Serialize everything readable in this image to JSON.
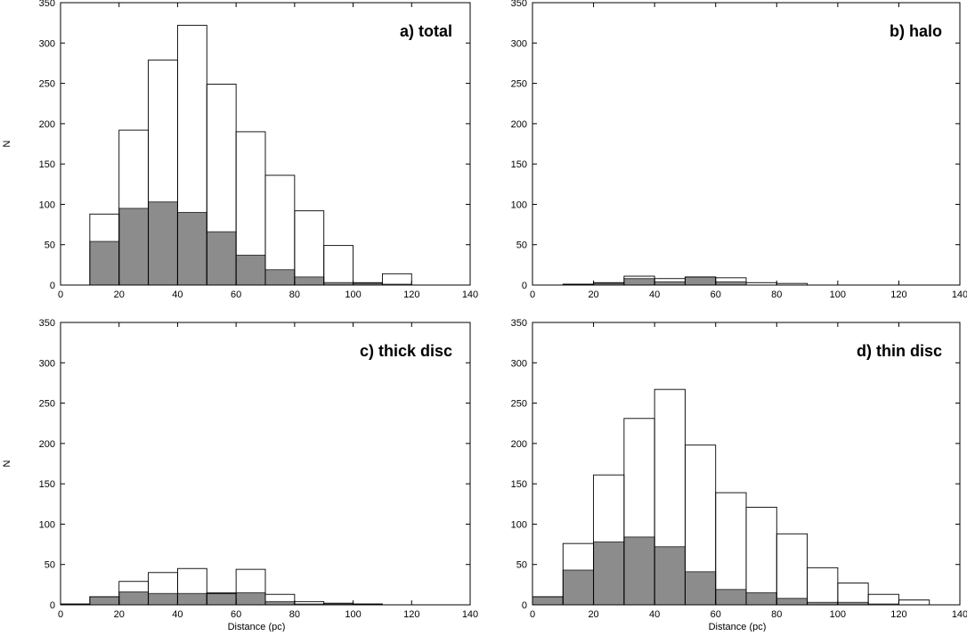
{
  "chart_data": [
    {
      "type": "bar",
      "panel": "a",
      "title": "a) total",
      "xlabel": "",
      "ylabel": "N",
      "xlim": [
        0,
        140
      ],
      "ylim": [
        0,
        350
      ],
      "xticks": [
        0,
        20,
        40,
        60,
        80,
        100,
        120,
        140
      ],
      "yticks": [
        0,
        50,
        100,
        150,
        200,
        250,
        300,
        350
      ],
      "bin_edges": [
        10,
        20,
        30,
        40,
        50,
        60,
        70,
        80,
        90,
        100,
        110,
        120
      ],
      "series": [
        {
          "style": "open",
          "values": [
            88,
            192,
            279,
            322,
            249,
            190,
            136,
            92,
            49,
            3,
            14
          ]
        },
        {
          "style": "filled",
          "values": [
            54,
            95,
            103,
            90,
            66,
            37,
            19,
            10,
            3,
            2,
            1
          ]
        }
      ]
    },
    {
      "type": "bar",
      "panel": "b",
      "title": "b) halo",
      "xlabel": "",
      "ylabel": "",
      "xlim": [
        0,
        140
      ],
      "ylim": [
        0,
        350
      ],
      "xticks": [
        0,
        20,
        40,
        60,
        80,
        100,
        120,
        140
      ],
      "yticks": [
        0,
        50,
        100,
        150,
        200,
        250,
        300,
        350
      ],
      "bin_edges": [
        10,
        20,
        30,
        40,
        50,
        60,
        70,
        80,
        90
      ],
      "series": [
        {
          "style": "open",
          "values": [
            1,
            3,
            11,
            8,
            10,
            9,
            3,
            2
          ]
        },
        {
          "style": "filled",
          "values": [
            1,
            2,
            8,
            4,
            10,
            4,
            0,
            0
          ]
        }
      ]
    },
    {
      "type": "bar",
      "panel": "c",
      "title": "c) thick disc",
      "xlabel": "Distance (pc)",
      "ylabel": "N",
      "xlim": [
        0,
        140
      ],
      "ylim": [
        0,
        350
      ],
      "xticks": [
        0,
        20,
        40,
        60,
        80,
        100,
        120,
        140
      ],
      "yticks": [
        0,
        50,
        100,
        150,
        200,
        250,
        300,
        350
      ],
      "bin_edges": [
        0,
        10,
        20,
        30,
        40,
        50,
        60,
        70,
        80,
        90,
        100,
        110
      ],
      "series": [
        {
          "style": "open",
          "values": [
            1,
            10,
            29,
            40,
            45,
            14,
            44,
            13,
            4,
            2,
            1
          ]
        },
        {
          "style": "filled",
          "values": [
            1,
            10,
            16,
            14,
            14,
            15,
            15,
            4,
            1,
            1,
            1
          ]
        }
      ]
    },
    {
      "type": "bar",
      "panel": "d",
      "title": "d) thin disc",
      "xlabel": "Distance (pc)",
      "ylabel": "",
      "xlim": [
        0,
        140
      ],
      "ylim": [
        0,
        350
      ],
      "xticks": [
        0,
        20,
        40,
        60,
        80,
        100,
        120,
        140
      ],
      "yticks": [
        0,
        50,
        100,
        150,
        200,
        250,
        300,
        350
      ],
      "bin_edges": [
        0,
        10,
        20,
        30,
        40,
        50,
        60,
        70,
        80,
        90,
        100,
        110,
        120,
        130
      ],
      "series": [
        {
          "style": "open",
          "values": [
            10,
            76,
            161,
            231,
            267,
            198,
            139,
            121,
            88,
            46,
            27,
            13,
            6
          ]
        },
        {
          "style": "filled",
          "values": [
            10,
            43,
            78,
            84,
            72,
            41,
            19,
            15,
            8,
            3,
            3,
            1,
            0
          ]
        }
      ]
    }
  ]
}
